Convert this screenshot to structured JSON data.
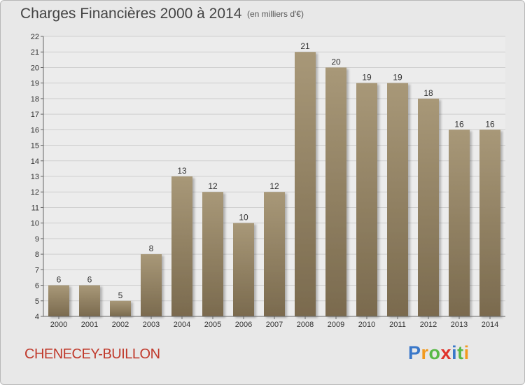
{
  "header": {
    "title": "Charges Financières 2000 à 2014",
    "unit": "(en milliers d'€)"
  },
  "footer": {
    "commune": "CHENECEY-BUILLON",
    "logo_letters": [
      "P",
      "r",
      "o",
      "x",
      "i",
      "t",
      "i"
    ],
    "logo_colors": [
      "#3a78c9",
      "#f29a1f",
      "#58b947",
      "#e0322b",
      "#3a78c9",
      "#58b947",
      "#f29a1f"
    ]
  },
  "chart_data": {
    "type": "bar",
    "title": "Charges Financières 2000 à 2014",
    "subtitle": "(en milliers d'€)",
    "categories": [
      "2000",
      "2001",
      "2002",
      "2003",
      "2004",
      "2005",
      "2006",
      "2007",
      "2008",
      "2009",
      "2010",
      "2011",
      "2012",
      "2013",
      "2014"
    ],
    "values": [
      6,
      6,
      5,
      8,
      13,
      12,
      10,
      12,
      21,
      20,
      19,
      19,
      18,
      16,
      16
    ],
    "ylim": [
      4,
      22
    ],
    "yticks": [
      4,
      5,
      6,
      7,
      8,
      9,
      10,
      11,
      12,
      13,
      14,
      15,
      16,
      17,
      18,
      19,
      20,
      21,
      22
    ],
    "grid": true,
    "bar_color_top": "#a89878",
    "bar_color_bottom": "#7a6a4e"
  }
}
